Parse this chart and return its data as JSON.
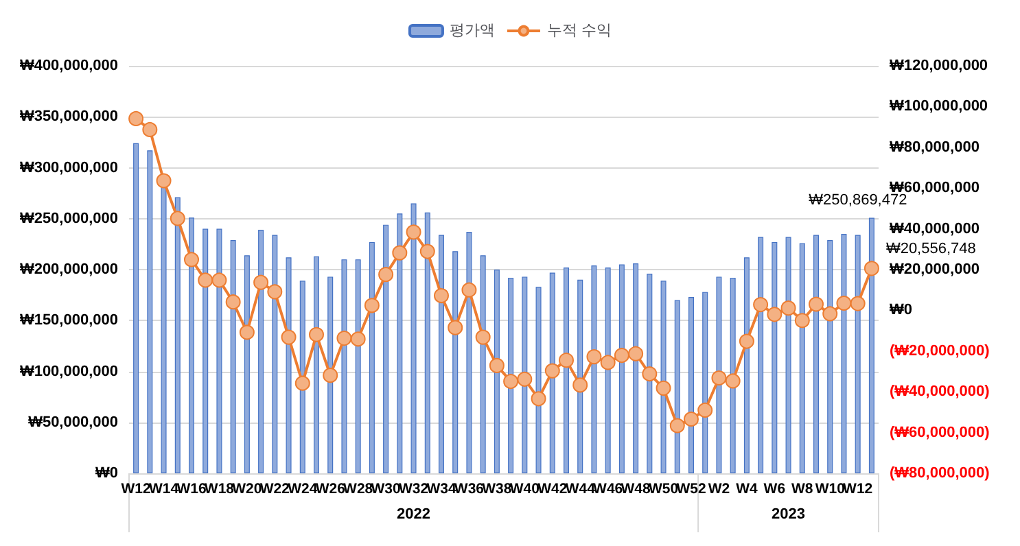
{
  "chart_data": {
    "type": "bar",
    "categories": [
      "W12",
      null,
      "W14",
      null,
      "W16",
      null,
      "W18",
      null,
      "W20",
      null,
      "W22",
      null,
      "W24",
      null,
      "W26",
      null,
      "W28",
      null,
      "W30",
      null,
      "W32",
      null,
      "W34",
      null,
      "W36",
      null,
      "W38",
      null,
      "W40",
      null,
      "W42",
      null,
      "W44",
      null,
      "W46",
      null,
      "W48",
      null,
      "W50",
      null,
      "W52",
      null,
      "W2",
      null,
      "W4",
      null,
      "W6",
      null,
      "W8",
      null,
      "W10",
      null,
      "W12",
      null
    ],
    "series": [
      {
        "name": "평가액",
        "color": "#8faadc",
        "values": [
          324000000,
          317000000,
          283000000,
          271000000,
          251000000,
          240000000,
          240000000,
          229000000,
          214000000,
          239000000,
          234000000,
          212000000,
          189000000,
          213000000,
          193000000,
          210000000,
          210000000,
          227000000,
          244000000,
          255000000,
          265000000,
          256000000,
          234000000,
          218000000,
          237000000,
          214000000,
          200000000,
          192000000,
          193000000,
          183000000,
          197000000,
          202000000,
          190000000,
          204000000,
          202000000,
          205000000,
          206000000,
          196000000,
          189000000,
          170000000,
          173000000,
          178000000,
          193000000,
          192000000,
          212000000,
          232000000,
          227000000,
          232000000,
          226000000,
          234000000,
          229000000,
          235000000,
          234000000,
          250869472
        ],
        "value_labels": [
          null,
          null,
          null,
          null,
          null,
          null,
          null,
          null,
          null,
          null,
          null,
          null,
          null,
          null,
          null,
          null,
          null,
          null,
          null,
          null,
          null,
          null,
          null,
          null,
          null,
          null,
          null,
          null,
          null,
          null,
          null,
          null,
          null,
          null,
          null,
          null,
          null,
          null,
          null,
          null,
          null,
          null,
          null,
          null,
          null,
          null,
          null,
          null,
          null,
          null,
          null,
          null,
          null,
          "₩250,869,472"
        ]
      },
      {
        "name": "누적 수익",
        "type": "line",
        "axis": "y2",
        "color": "#ed7d31",
        "values": [
          94100000,
          88700000,
          63600000,
          45100000,
          24900000,
          14800000,
          14800000,
          4100000,
          -10800000,
          13700000,
          9100000,
          -13200000,
          -35800000,
          -11900000,
          -31900000,
          -13700000,
          -14100000,
          2400000,
          17600000,
          28200000,
          38400000,
          28900000,
          7200000,
          -8500000,
          10000000,
          -13200000,
          -27100000,
          -34900000,
          -33800000,
          -43400000,
          -29700000,
          -24500000,
          -36700000,
          -22800000,
          -25600000,
          -22100000,
          -21300000,
          -31200000,
          -38200000,
          -56600000,
          -53400000,
          -49000000,
          -33200000,
          -34700000,
          -15200000,
          2800000,
          -2000000,
          1100000,
          -5000000,
          3000000,
          -1700000,
          3500000,
          3300000,
          20556748
        ],
        "value_labels": [
          null,
          null,
          null,
          null,
          null,
          null,
          null,
          null,
          null,
          null,
          null,
          null,
          null,
          null,
          null,
          null,
          null,
          null,
          null,
          null,
          null,
          null,
          null,
          null,
          null,
          null,
          null,
          null,
          null,
          null,
          null,
          null,
          null,
          null,
          null,
          null,
          null,
          null,
          null,
          null,
          null,
          null,
          null,
          null,
          null,
          null,
          null,
          null,
          null,
          null,
          null,
          null,
          null,
          "₩20,556,748"
        ]
      }
    ],
    "ylim": [
      0,
      400000000
    ],
    "yticks": [
      {
        "value": 0,
        "label": "₩0"
      },
      {
        "value": 50000000,
        "label": "₩50,000,000"
      },
      {
        "value": 100000000,
        "label": "₩100,000,000"
      },
      {
        "value": 150000000,
        "label": "₩150,000,000"
      },
      {
        "value": 200000000,
        "label": "₩200,000,000"
      },
      {
        "value": 250000000,
        "label": "₩250,000,000"
      },
      {
        "value": 300000000,
        "label": "₩300,000,000"
      },
      {
        "value": 350000000,
        "label": "₩350,000,000"
      },
      {
        "value": 400000000,
        "label": "₩400,000,000"
      }
    ],
    "y2lim": [
      -80000000,
      120000000
    ],
    "y2ticks": [
      {
        "value": -80000000,
        "label": "(₩80,000,000)"
      },
      {
        "value": -60000000,
        "label": "(₩60,000,000)"
      },
      {
        "value": -40000000,
        "label": "(₩40,000,000)"
      },
      {
        "value": -20000000,
        "label": "(₩20,000,000)"
      },
      {
        "value": 0,
        "label": "₩0"
      },
      {
        "value": 20000000,
        "label": "₩20,000,000"
      },
      {
        "value": 40000000,
        "label": "₩40,000,000"
      },
      {
        "value": 60000000,
        "label": "₩60,000,000"
      },
      {
        "value": 80000000,
        "label": "₩80,000,000"
      },
      {
        "value": 100000000,
        "label": "₩100,000,000"
      },
      {
        "value": 120000000,
        "label": "₩120,000,000"
      }
    ],
    "annotations": [
      "2022",
      "2023"
    ],
    "grid": "y",
    "legend": "top",
    "marker": "circle",
    "line_style": "solid"
  }
}
